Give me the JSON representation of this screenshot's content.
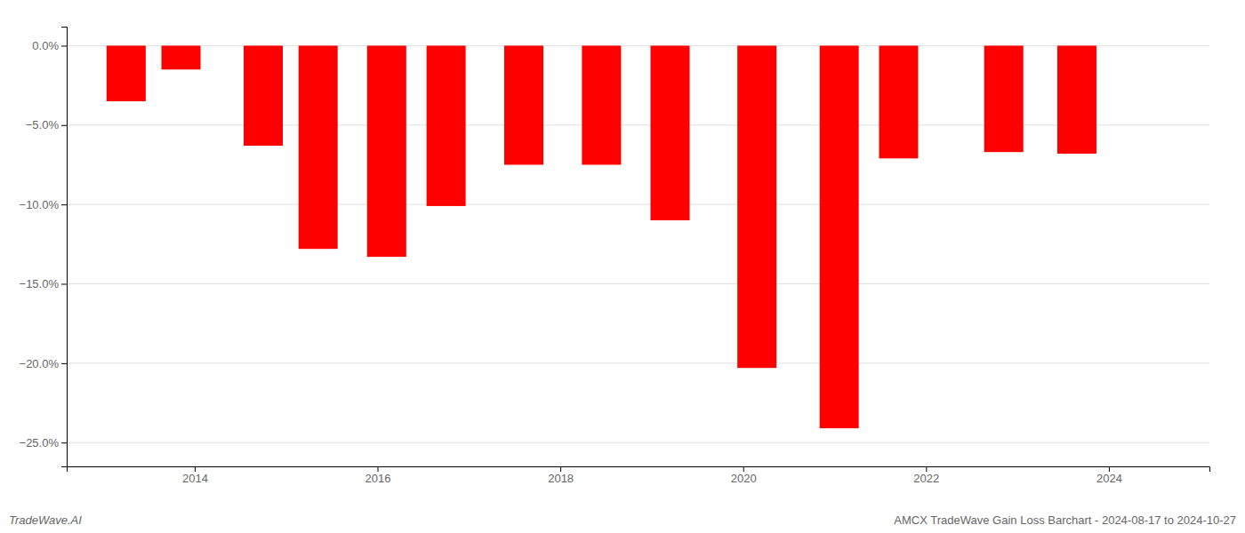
{
  "chart_data": {
    "type": "bar",
    "x": [
      2013.25,
      2013.85,
      2014.75,
      2015.35,
      2016.1,
      2016.75,
      2017.6,
      2018.45,
      2019.2,
      2020.15,
      2021.05,
      2021.7,
      2022.85,
      2023.65
    ],
    "values": [
      -3.5,
      -1.5,
      -6.3,
      -12.8,
      -13.3,
      -10.1,
      -7.5,
      -7.5,
      -11.0,
      -20.3,
      -24.1,
      -7.1,
      -6.7,
      -6.8
    ],
    "color": "#ff0000",
    "xlim": [
      2012.6,
      2025.1
    ],
    "xticks": [
      2014,
      2016,
      2018,
      2020,
      2022,
      2024
    ],
    "ylim": [
      -26.5,
      1.2
    ],
    "yticks": [
      {
        "value": 0.0,
        "label": "0.0%"
      },
      {
        "value": -5.0,
        "label": "−5.0%"
      },
      {
        "value": -10.0,
        "label": "−10.0%"
      },
      {
        "value": -15.0,
        "label": "−15.0%"
      },
      {
        "value": -20.0,
        "label": "−20.0%"
      },
      {
        "value": -25.0,
        "label": "−25.0%"
      }
    ],
    "grid": true,
    "annotations": [
      "TradeWave.AI",
      "AMCX TradeWave Gain Loss Barchart - 2024-08-17 to 2024-10-27"
    ]
  }
}
